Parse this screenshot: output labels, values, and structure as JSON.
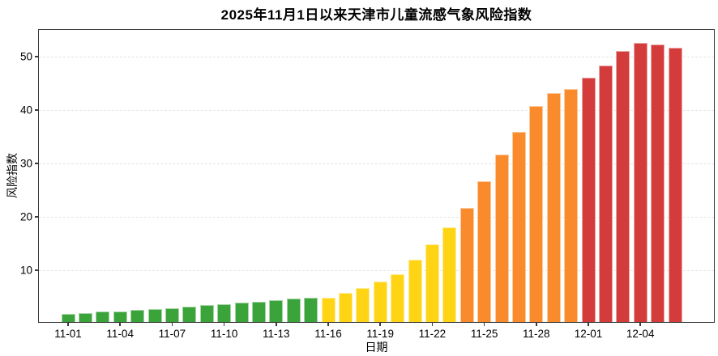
{
  "chart_data": {
    "type": "bar",
    "title": "2025年11月1日以来天津市儿童流感气象风险指数",
    "xlabel": "日期",
    "ylabel": "风险指数",
    "categories": [
      "11-01",
      "11-02",
      "11-03",
      "11-04",
      "11-05",
      "11-06",
      "11-07",
      "11-08",
      "11-09",
      "11-10",
      "11-11",
      "11-12",
      "11-13",
      "11-14",
      "11-15",
      "11-16",
      "11-17",
      "11-18",
      "11-19",
      "11-20",
      "11-21",
      "11-22",
      "11-23",
      "11-24",
      "11-25",
      "11-26",
      "11-27",
      "11-28",
      "11-29",
      "11-30",
      "12-01",
      "12-02",
      "12-03",
      "12-04",
      "12-05",
      "12-06"
    ],
    "values": [
      1.5,
      1.6,
      1.9,
      1.9,
      2.2,
      2.5,
      2.6,
      2.9,
      3.2,
      3.4,
      3.6,
      3.8,
      4.1,
      4.4,
      4.5,
      4.6,
      5.5,
      6.3,
      7.6,
      9.0,
      11.7,
      14.5,
      17.8,
      21.4,
      26.3,
      31.3,
      35.6,
      40.5,
      42.9,
      43.7,
      45.8,
      48.0,
      50.8,
      52.2,
      51.9,
      51.4
    ],
    "color_segments": [
      {
        "name": "green-low-risk",
        "color": "#3AA33A",
        "count": 15
      },
      {
        "name": "yellow-moderate-risk",
        "color": "#FFD414",
        "count": 8
      },
      {
        "name": "orange-high-risk",
        "color": "#F98B2D",
        "count": 7
      },
      {
        "name": "red-very-high-risk",
        "color": "#D43B3B",
        "count": 6
      }
    ],
    "ylim": [
      0,
      55
    ],
    "yticks": [
      10,
      20,
      30,
      40,
      50
    ],
    "xticks": [
      "11-01",
      "11-04",
      "11-07",
      "11-10",
      "11-13",
      "11-16",
      "11-19",
      "11-22",
      "11-25",
      "11-28",
      "12-01",
      "12-04"
    ],
    "grid": "horizontal-dashed",
    "legend": "none"
  }
}
